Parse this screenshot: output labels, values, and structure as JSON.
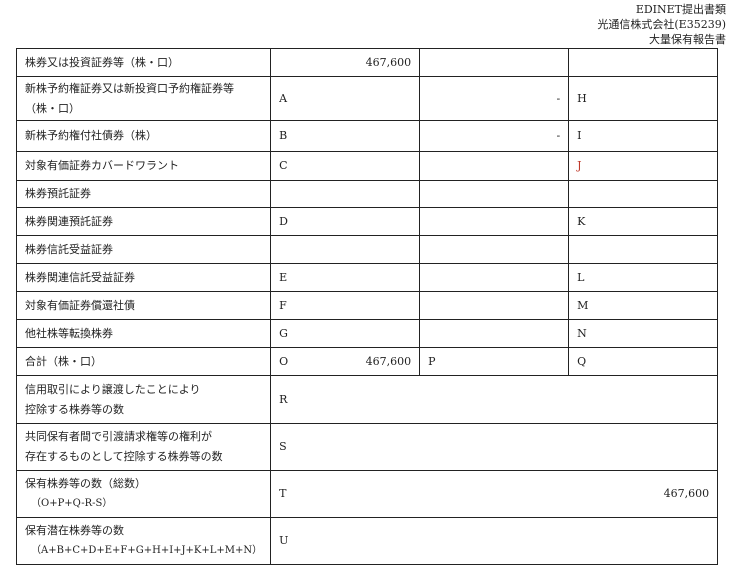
{
  "header": {
    "line1": "EDINET提出書類",
    "line2": "光通信株式会社(E35239)",
    "line3": "大量保有報告書"
  },
  "rows": [
    {
      "label": "株券又は投資証券等（株・口）",
      "c2": "",
      "v2": "467,600",
      "c3": "",
      "v3": "",
      "c4": ""
    },
    {
      "label": "新株予約権証券又は新投資口予約権証券等",
      "label2": "（株・口）",
      "c2": "A",
      "v2": "",
      "c3": "",
      "v3": "-",
      "c4": "H"
    },
    {
      "label": "新株予約権付社債券（株）",
      "c2": "B",
      "v2": "",
      "c3": "",
      "v3": "-",
      "c4": "I"
    },
    {
      "label": "対象有価証券カバードワラント",
      "c2": "C",
      "v2": "",
      "c3": "",
      "v3": "",
      "c4": "J"
    },
    {
      "label": "株券預託証券",
      "c2": "",
      "v2": "",
      "c3": "",
      "v3": "",
      "c4": ""
    },
    {
      "label": "株券関連預託証券",
      "c2": "D",
      "v2": "",
      "c3": "",
      "v3": "",
      "c4": "K"
    },
    {
      "label": "株券信託受益証券",
      "c2": "",
      "v2": "",
      "c3": "",
      "v3": "",
      "c4": ""
    },
    {
      "label": "株券関連信託受益証券",
      "c2": "E",
      "v2": "",
      "c3": "",
      "v3": "",
      "c4": "L"
    },
    {
      "label": "対象有価証券償還社債",
      "c2": "F",
      "v2": "",
      "c3": "",
      "v3": "",
      "c4": "M"
    },
    {
      "label": "他社株等転換株券",
      "c2": "G",
      "v2": "",
      "c3": "",
      "v3": "",
      "c4": "N"
    },
    {
      "label": "合計（株・口）",
      "c2": "O",
      "v2": "467,600",
      "c3": "P",
      "v3": "",
      "c4": "Q"
    }
  ],
  "merged": [
    {
      "label": "信用取引により譲渡したことにより",
      "label2": "控除する株券等の数",
      "letter": "R",
      "value": ""
    },
    {
      "label": "共同保有者間で引渡請求権等の権利が",
      "label2": "存在するものとして控除する株券等の数",
      "letter": "S",
      "value": ""
    },
    {
      "label": "保有株券等の数（総数）",
      "label2": "（O+P+Q-R-S）",
      "letter": "T",
      "value": "467,600"
    },
    {
      "label": "保有潜在株券等の数",
      "label2": "（A+B+C+D+E+F+G+H+I+J+K+L+M+N）",
      "letter": "U",
      "value": ""
    }
  ],
  "colors": {
    "highlight": "#c0392b"
  }
}
